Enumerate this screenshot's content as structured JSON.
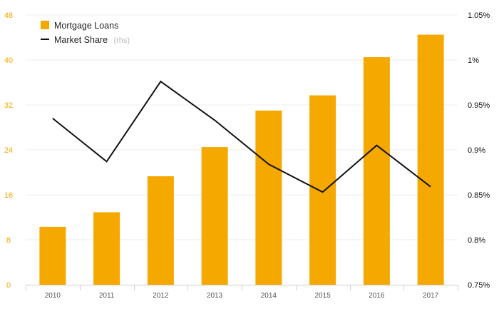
{
  "chart_data": {
    "type": "bar",
    "categories": [
      "2010",
      "2011",
      "2012",
      "2013",
      "2014",
      "2015",
      "2016",
      "2017"
    ],
    "series": [
      {
        "name": "Mortgage Loans",
        "type": "bar",
        "axis": "left",
        "color": "#f5a800",
        "values": [
          10.3,
          12.9,
          19.3,
          24.5,
          31.0,
          33.7,
          40.5,
          44.5
        ]
      },
      {
        "name": "Market Share",
        "legend_suffix": "(rhs)",
        "type": "line",
        "axis": "right",
        "color": "#111111",
        "values": [
          0.935,
          0.887,
          0.976,
          0.933,
          0.884,
          0.853,
          0.905,
          0.859
        ]
      }
    ],
    "y_left": {
      "ylim": [
        0,
        48
      ],
      "ticks": [
        "0",
        "8",
        "16",
        "24",
        "32",
        "40",
        "48"
      ]
    },
    "y_right": {
      "ylim": [
        0.75,
        1.05
      ],
      "ticks": [
        "0.75%",
        "0.8%",
        "0.85%",
        "0.9%",
        "0.95%",
        "1%",
        "1.05%"
      ]
    },
    "grid": true,
    "legend_position": "top-left"
  }
}
